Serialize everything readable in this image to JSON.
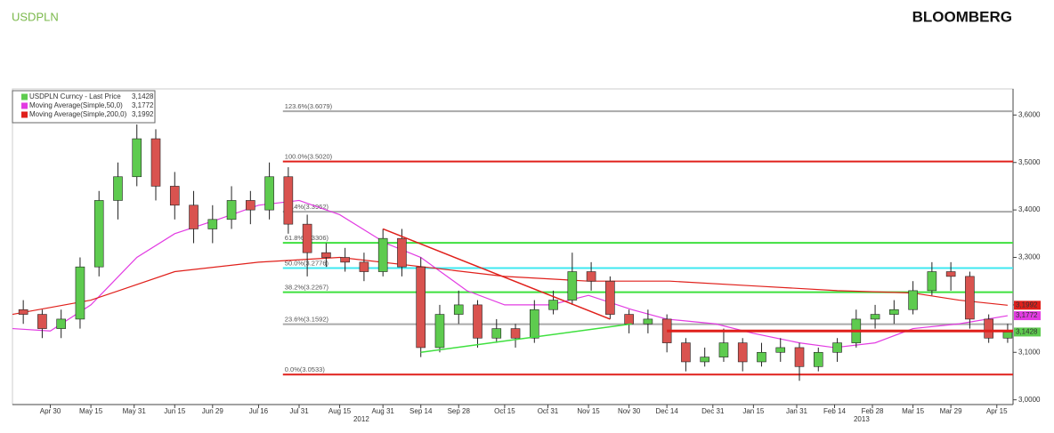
{
  "chart_data": {
    "type": "candlestick",
    "title": "USDPLN",
    "brand": "BLOOMBERG",
    "name": "USDPLN Curncy - Last Price",
    "last": {
      "value": 3.1428,
      "label": "3,1428"
    },
    "up_color": "#5ecb4f",
    "down_color": "#d9534f",
    "xlim": [
      "2012-04-16",
      "2013-04-21"
    ],
    "ylim": [
      2.99,
      3.655
    ],
    "yticks": [
      {
        "value": 3.0,
        "label": "3,0000"
      },
      {
        "value": 3.1,
        "label": "3,1000"
      },
      {
        "value": 3.2,
        "label": "3,2000"
      },
      {
        "value": 3.3,
        "label": "3,3000"
      },
      {
        "value": 3.4,
        "label": "3,4000"
      },
      {
        "value": 3.5,
        "label": "3,5000"
      },
      {
        "value": 3.6,
        "label": "3,6000"
      }
    ],
    "xticks": [
      {
        "value": "2012-04-30",
        "label": "Apr 30"
      },
      {
        "value": "2012-05-15",
        "label": "May 15"
      },
      {
        "value": "2012-05-31",
        "label": "May 31"
      },
      {
        "value": "2012-06-15",
        "label": "Jun 15"
      },
      {
        "value": "2012-06-29",
        "label": "Jun 29"
      },
      {
        "value": "2012-07-16",
        "label": "Jul 16"
      },
      {
        "value": "2012-07-31",
        "label": "Jul 31"
      },
      {
        "value": "2012-08-15",
        "label": "Aug 15"
      },
      {
        "value": "2012-08-31",
        "label": "Aug 31"
      },
      {
        "value": "2012-09-14",
        "label": "Sep 14"
      },
      {
        "value": "2012-09-28",
        "label": "Sep 28"
      },
      {
        "value": "2012-10-15",
        "label": "Oct 15"
      },
      {
        "value": "2012-10-31",
        "label": "Oct 31"
      },
      {
        "value": "2012-11-15",
        "label": "Nov 15"
      },
      {
        "value": "2012-11-30",
        "label": "Nov 30"
      },
      {
        "value": "2012-12-14",
        "label": "Dec 14"
      },
      {
        "value": "2012-12-31",
        "label": "Dec 31"
      },
      {
        "value": "2013-01-15",
        "label": "Jan 15"
      },
      {
        "value": "2013-01-31",
        "label": "Jan 31"
      },
      {
        "value": "2013-02-14",
        "label": "Feb 14"
      },
      {
        "value": "2013-02-28",
        "label": "Feb 28"
      },
      {
        "value": "2013-03-15",
        "label": "Mar 15"
      },
      {
        "value": "2013-03-29",
        "label": "Mar 29"
      },
      {
        "value": "2013-04-15",
        "label": "Apr 15"
      }
    ],
    "year_ticks": [
      {
        "value": "2012-08-23",
        "label": "2012"
      },
      {
        "value": "2013-02-24",
        "label": "2013"
      }
    ],
    "x": [
      "2012-04-20",
      "2012-04-27",
      "2012-05-04",
      "2012-05-11",
      "2012-05-18",
      "2012-05-25",
      "2012-06-01",
      "2012-06-08",
      "2012-06-15",
      "2012-06-22",
      "2012-06-29",
      "2012-07-06",
      "2012-07-13",
      "2012-07-20",
      "2012-07-27",
      "2012-08-03",
      "2012-08-10",
      "2012-08-17",
      "2012-08-24",
      "2012-08-31",
      "2012-09-07",
      "2012-09-14",
      "2012-09-21",
      "2012-09-28",
      "2012-10-05",
      "2012-10-12",
      "2012-10-19",
      "2012-10-26",
      "2012-11-02",
      "2012-11-09",
      "2012-11-16",
      "2012-11-23",
      "2012-11-30",
      "2012-12-07",
      "2012-12-14",
      "2012-12-21",
      "2012-12-28",
      "2013-01-04",
      "2013-01-11",
      "2013-01-18",
      "2013-01-25",
      "2013-02-01",
      "2013-02-08",
      "2013-02-15",
      "2013-02-22",
      "2013-03-01",
      "2013-03-08",
      "2013-03-15",
      "2013-03-22",
      "2013-03-29",
      "2013-04-05",
      "2013-04-12",
      "2013-04-19"
    ],
    "open": [
      3.19,
      3.18,
      3.15,
      3.17,
      3.28,
      3.42,
      3.47,
      3.55,
      3.45,
      3.41,
      3.36,
      3.38,
      3.42,
      3.4,
      3.47,
      3.37,
      3.31,
      3.3,
      3.29,
      3.27,
      3.34,
      3.28,
      3.11,
      3.18,
      3.2,
      3.13,
      3.15,
      3.13,
      3.19,
      3.21,
      3.27,
      3.25,
      3.18,
      3.16,
      3.17,
      3.12,
      3.08,
      3.09,
      3.12,
      3.08,
      3.1,
      3.11,
      3.07,
      3.1,
      3.12,
      3.17,
      3.18,
      3.19,
      3.23,
      3.27,
      3.26,
      3.17,
      3.13
    ],
    "high": [
      3.21,
      3.19,
      3.19,
      3.3,
      3.44,
      3.5,
      3.58,
      3.57,
      3.48,
      3.44,
      3.41,
      3.45,
      3.44,
      3.5,
      3.49,
      3.39,
      3.33,
      3.32,
      3.31,
      3.36,
      3.36,
      3.3,
      3.2,
      3.23,
      3.21,
      3.17,
      3.16,
      3.21,
      3.23,
      3.31,
      3.29,
      3.26,
      3.19,
      3.19,
      3.18,
      3.13,
      3.11,
      3.15,
      3.13,
      3.12,
      3.13,
      3.12,
      3.11,
      3.13,
      3.19,
      3.2,
      3.21,
      3.25,
      3.29,
      3.29,
      3.27,
      3.18,
      3.16
    ],
    "low": [
      3.16,
      3.13,
      3.13,
      3.15,
      3.26,
      3.38,
      3.45,
      3.42,
      3.38,
      3.33,
      3.33,
      3.36,
      3.37,
      3.38,
      3.35,
      3.26,
      3.28,
      3.27,
      3.25,
      3.26,
      3.26,
      3.09,
      3.1,
      3.16,
      3.11,
      3.12,
      3.11,
      3.12,
      3.18,
      3.2,
      3.23,
      3.17,
      3.14,
      3.14,
      3.1,
      3.06,
      3.07,
      3.08,
      3.06,
      3.07,
      3.08,
      3.04,
      3.06,
      3.08,
      3.11,
      3.15,
      3.16,
      3.18,
      3.22,
      3.23,
      3.15,
      3.12,
      3.12
    ],
    "close": [
      3.18,
      3.15,
      3.17,
      3.28,
      3.42,
      3.47,
      3.55,
      3.45,
      3.41,
      3.36,
      3.38,
      3.42,
      3.4,
      3.47,
      3.37,
      3.31,
      3.3,
      3.29,
      3.27,
      3.34,
      3.28,
      3.11,
      3.18,
      3.2,
      3.13,
      3.15,
      3.13,
      3.19,
      3.21,
      3.27,
      3.25,
      3.18,
      3.16,
      3.17,
      3.12,
      3.08,
      3.09,
      3.12,
      3.08,
      3.1,
      3.11,
      3.07,
      3.1,
      3.12,
      3.17,
      3.18,
      3.19,
      3.23,
      3.27,
      3.26,
      3.17,
      3.13,
      3.1428
    ],
    "lines": [
      {
        "name": "Moving Average(Simple,50,0)",
        "color": "#e23be2",
        "last": {
          "value": 3.1772,
          "label": "3,1772"
        },
        "x": [
          "2012-04-16",
          "2012-04-30",
          "2012-05-15",
          "2012-06-01",
          "2012-06-15",
          "2012-07-01",
          "2012-07-16",
          "2012-07-31",
          "2012-08-15",
          "2012-09-01",
          "2012-09-14",
          "2012-10-01",
          "2012-10-15",
          "2012-11-01",
          "2012-11-15",
          "2012-12-01",
          "2012-12-14",
          "2013-01-01",
          "2013-01-15",
          "2013-02-01",
          "2013-02-14",
          "2013-03-01",
          "2013-03-15",
          "2013-04-01",
          "2013-04-19"
        ],
        "values": [
          3.15,
          3.145,
          3.2,
          3.3,
          3.35,
          3.38,
          3.41,
          3.42,
          3.39,
          3.33,
          3.3,
          3.23,
          3.2,
          3.2,
          3.22,
          3.19,
          3.17,
          3.16,
          3.14,
          3.12,
          3.11,
          3.12,
          3.15,
          3.16,
          3.1772
        ]
      },
      {
        "name": "Moving Average(Simple,200,0)",
        "color": "#e0201b",
        "last": {
          "value": 3.1992,
          "label": "3,1992"
        },
        "x": [
          "2012-04-16",
          "2012-05-15",
          "2012-06-15",
          "2012-07-16",
          "2012-08-15",
          "2012-09-15",
          "2012-10-15",
          "2012-11-15",
          "2012-12-15",
          "2013-01-15",
          "2013-02-15",
          "2013-03-15",
          "2013-04-01",
          "2013-04-19"
        ],
        "values": [
          3.18,
          3.21,
          3.27,
          3.29,
          3.3,
          3.28,
          3.26,
          3.25,
          3.25,
          3.24,
          3.23,
          3.225,
          3.21,
          3.1992
        ]
      }
    ],
    "levels": [
      {
        "label": "123.6%(3.6079)",
        "value": 3.6079,
        "color": "#aaaaaa",
        "start": "2012-07-25"
      },
      {
        "label": "100.0%(3.5020)",
        "value": 3.502,
        "color": "#e0201b",
        "start": "2012-07-25"
      },
      {
        "label": "76.4%(3.3962)",
        "value": 3.3962,
        "color": "#aaaaaa",
        "start": "2012-07-25"
      },
      {
        "label": "61.8%(3.3306)",
        "value": 3.3306,
        "color": "#3ee03e",
        "start": "2012-07-25"
      },
      {
        "label": "50.0%(3.2776)",
        "value": 3.2776,
        "color": "#3ee8f0",
        "start": "2012-07-25"
      },
      {
        "label": "38.2%(3.2267)",
        "value": 3.2267,
        "color": "#3ee03e",
        "start": "2012-07-25"
      },
      {
        "label": "23.6%(3.1592)",
        "value": 3.1592,
        "color": "#aaaaaa",
        "start": "2012-07-25"
      },
      {
        "label": "0.0%(3.0533)",
        "value": 3.0533,
        "color": "#e0201b",
        "start": "2012-07-25"
      }
    ],
    "trendlines": [
      {
        "color": "#e0201b",
        "x": [
          "2012-08-31",
          "2012-11-23"
        ],
        "values": [
          3.36,
          3.17
        ]
      },
      {
        "color": "#3ee03e",
        "x": [
          "2012-09-14",
          "2012-12-01"
        ],
        "values": [
          3.1,
          3.16
        ]
      },
      {
        "color": "#e0201b",
        "x": [
          "2012-12-14",
          "2013-04-21"
        ],
        "values": [
          3.145,
          3.145
        ]
      }
    ]
  }
}
